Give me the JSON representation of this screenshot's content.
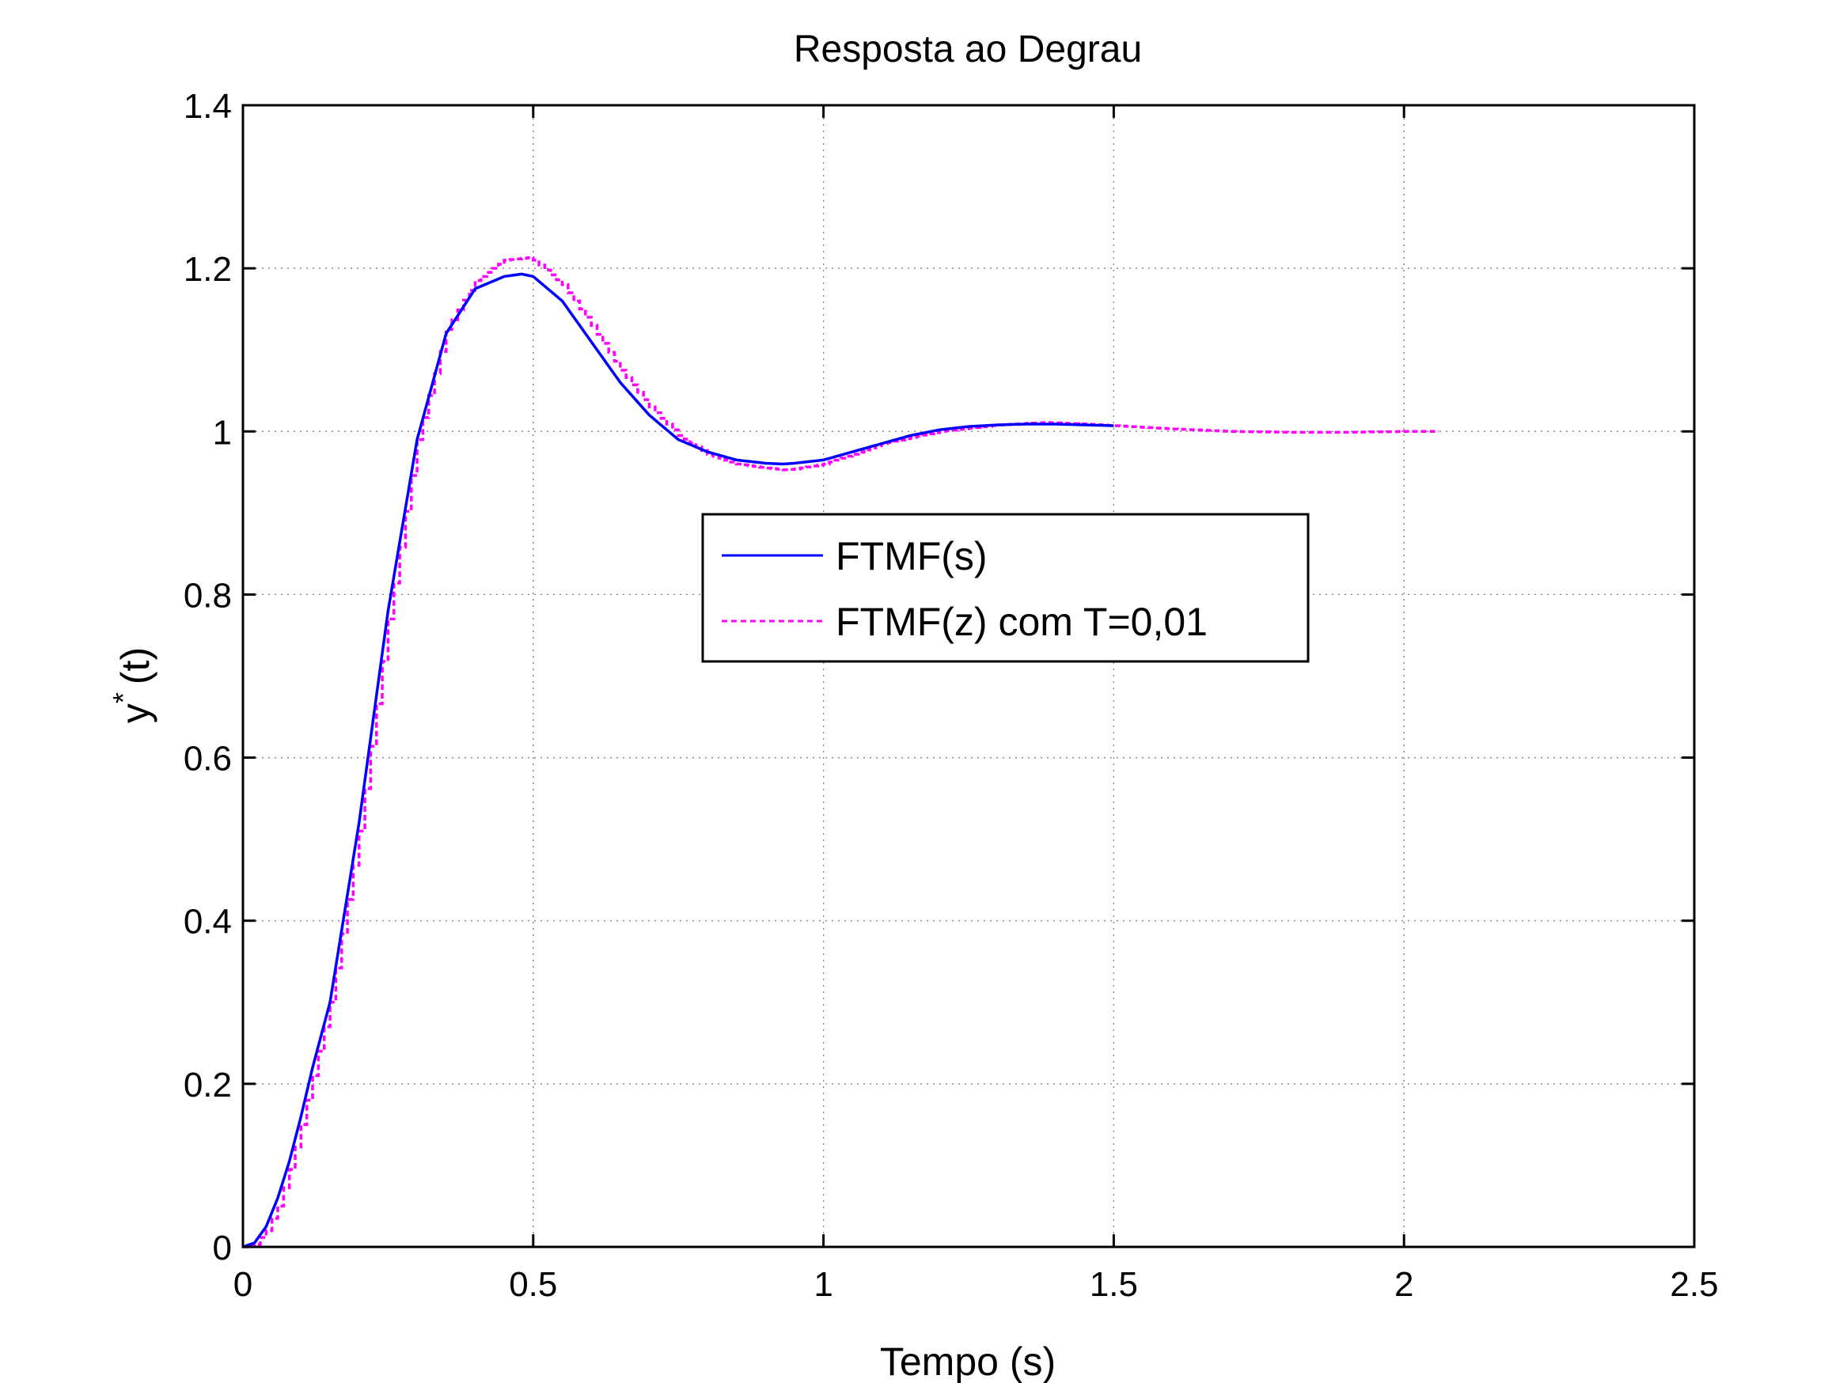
{
  "chart_data": {
    "type": "line",
    "title": "Resposta ao Degrau",
    "xlabel": "Tempo (s)",
    "ylabel_base": "y",
    "ylabel_sup": "*",
    "ylabel_rest": "(t)",
    "xlim": [
      0,
      2.5
    ],
    "ylim": [
      0,
      1.4
    ],
    "xticks": [
      0,
      0.5,
      1,
      1.5,
      2,
      2.5
    ],
    "xtick_labels": [
      "0",
      "0.5",
      "1",
      "1.5",
      "2",
      "2.5"
    ],
    "yticks": [
      0,
      0.2,
      0.4,
      0.6,
      0.8,
      1,
      1.2,
      1.4
    ],
    "ytick_labels": [
      "0",
      "0.2",
      "0.4",
      "0.6",
      "0.8",
      "1",
      "1.2",
      "1.4"
    ],
    "grid": true,
    "legend_position": "center",
    "series": [
      {
        "name": "FTMF(s)",
        "color": "#0000ff",
        "style": "solid",
        "x": [
          0,
          0.02,
          0.04,
          0.06,
          0.08,
          0.1,
          0.12,
          0.15,
          0.2,
          0.25,
          0.3,
          0.35,
          0.4,
          0.45,
          0.48,
          0.5,
          0.55,
          0.6,
          0.65,
          0.7,
          0.75,
          0.8,
          0.85,
          0.9,
          0.93,
          0.95,
          1.0,
          1.05,
          1.1,
          1.15,
          1.2,
          1.25,
          1.3,
          1.35,
          1.4,
          1.45,
          1.5
        ],
        "y": [
          0,
          0.005,
          0.025,
          0.06,
          0.105,
          0.16,
          0.22,
          0.3,
          0.52,
          0.78,
          0.99,
          1.12,
          1.175,
          1.19,
          1.193,
          1.19,
          1.16,
          1.11,
          1.06,
          1.02,
          0.99,
          0.975,
          0.965,
          0.961,
          0.96,
          0.961,
          0.965,
          0.975,
          0.985,
          0.995,
          1.002,
          1.006,
          1.008,
          1.009,
          1.009,
          1.008,
          1.007
        ]
      },
      {
        "name": "FTMF(z) com T=0,01",
        "color": "#ff00ff",
        "style": "dashed",
        "sample_period": 0.01,
        "x": [
          0,
          0.02,
          0.04,
          0.06,
          0.08,
          0.1,
          0.12,
          0.15,
          0.2,
          0.25,
          0.3,
          0.35,
          0.4,
          0.45,
          0.49,
          0.5,
          0.55,
          0.6,
          0.65,
          0.7,
          0.75,
          0.8,
          0.85,
          0.9,
          0.93,
          0.95,
          1.0,
          1.05,
          1.1,
          1.2,
          1.3,
          1.38,
          1.45,
          1.5,
          1.6,
          1.7,
          1.8,
          1.9,
          2.0,
          2.06
        ],
        "y": [
          0,
          0.003,
          0.02,
          0.05,
          0.095,
          0.15,
          0.21,
          0.3,
          0.51,
          0.77,
          0.99,
          1.125,
          1.185,
          1.21,
          1.213,
          1.21,
          1.18,
          1.13,
          1.075,
          1.03,
          0.995,
          0.972,
          0.96,
          0.955,
          0.953,
          0.954,
          0.96,
          0.972,
          0.985,
          1.0,
          1.008,
          1.011,
          1.009,
          1.007,
          1.003,
          1.0,
          0.999,
          0.999,
          1.0,
          1.0
        ]
      }
    ]
  }
}
